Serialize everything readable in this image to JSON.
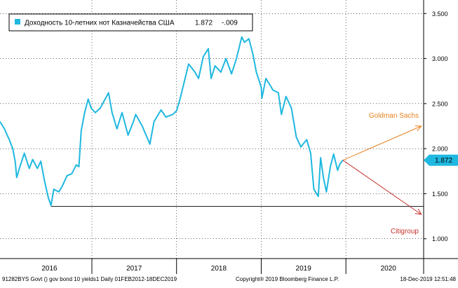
{
  "chart_data": {
    "type": "line",
    "title": "",
    "xlabel": "",
    "ylabel": "",
    "legend": {
      "label": "Доходность 10-летних нот Казначейства США",
      "last": "1.872",
      "change": "-.009",
      "placement": "top-left"
    },
    "x_range": [
      "2015-12-01",
      "2020-11-30"
    ],
    "ylim": [
      0.78,
      3.65
    ],
    "y_ticks": [
      "1.000",
      "1.500",
      "2.000",
      "2.500",
      "3.000",
      "3.500"
    ],
    "x_ticks": [
      {
        "label": "2016",
        "date": "2016-07-01"
      },
      {
        "label": "2017",
        "date": "2017-07-01"
      },
      {
        "label": "2018",
        "date": "2018-07-01"
      },
      {
        "label": "2019",
        "date": "2019-07-01"
      },
      {
        "label": "2020",
        "date": "2020-07-01"
      }
    ],
    "year_dividers": [
      "2016-12-31",
      "2017-12-31",
      "2018-12-31",
      "2019-12-31"
    ],
    "last_value_label": "1.872",
    "last_value": 1.872,
    "grid": true,
    "series": [
      {
        "name": "Доходность 10-летних нот Казначейства США",
        "color": "#1fb8e0",
        "points": [
          [
            "2015-12-01",
            2.3
          ],
          [
            "2015-12-20",
            2.22
          ],
          [
            "2016-01-10",
            2.1
          ],
          [
            "2016-01-25",
            2.0
          ],
          [
            "2016-02-05",
            1.85
          ],
          [
            "2016-02-11",
            1.68
          ],
          [
            "2016-02-25",
            1.8
          ],
          [
            "2016-03-15",
            1.95
          ],
          [
            "2016-04-05",
            1.78
          ],
          [
            "2016-04-20",
            1.88
          ],
          [
            "2016-05-10",
            1.78
          ],
          [
            "2016-05-25",
            1.86
          ],
          [
            "2016-06-10",
            1.64
          ],
          [
            "2016-06-27",
            1.45
          ],
          [
            "2016-07-08",
            1.37
          ],
          [
            "2016-07-20",
            1.55
          ],
          [
            "2016-08-10",
            1.52
          ],
          [
            "2016-08-25",
            1.58
          ],
          [
            "2016-09-15",
            1.7
          ],
          [
            "2016-10-05",
            1.72
          ],
          [
            "2016-10-25",
            1.82
          ],
          [
            "2016-11-05",
            1.8
          ],
          [
            "2016-11-15",
            2.2
          ],
          [
            "2016-11-30",
            2.4
          ],
          [
            "2016-12-15",
            2.55
          ],
          [
            "2016-12-28",
            2.45
          ],
          [
            "2017-01-15",
            2.4
          ],
          [
            "2017-02-05",
            2.45
          ],
          [
            "2017-03-13",
            2.62
          ],
          [
            "2017-03-28",
            2.4
          ],
          [
            "2017-04-18",
            2.22
          ],
          [
            "2017-05-10",
            2.4
          ],
          [
            "2017-06-05",
            2.15
          ],
          [
            "2017-06-28",
            2.3
          ],
          [
            "2017-07-08",
            2.38
          ],
          [
            "2017-08-05",
            2.25
          ],
          [
            "2017-09-07",
            2.05
          ],
          [
            "2017-09-25",
            2.3
          ],
          [
            "2017-10-25",
            2.43
          ],
          [
            "2017-11-15",
            2.35
          ],
          [
            "2017-12-15",
            2.38
          ],
          [
            "2017-12-31",
            2.42
          ],
          [
            "2018-01-15",
            2.55
          ],
          [
            "2018-01-31",
            2.72
          ],
          [
            "2018-02-21",
            2.94
          ],
          [
            "2018-03-20",
            2.85
          ],
          [
            "2018-04-05",
            2.78
          ],
          [
            "2018-04-25",
            3.02
          ],
          [
            "2018-05-17",
            3.11
          ],
          [
            "2018-05-29",
            2.78
          ],
          [
            "2018-06-15",
            2.92
          ],
          [
            "2018-07-10",
            2.85
          ],
          [
            "2018-08-01",
            3.0
          ],
          [
            "2018-08-25",
            2.83
          ],
          [
            "2018-09-15",
            3.0
          ],
          [
            "2018-10-08",
            3.24
          ],
          [
            "2018-10-20",
            3.18
          ],
          [
            "2018-11-08",
            3.22
          ],
          [
            "2018-11-25",
            3.05
          ],
          [
            "2018-12-10",
            2.85
          ],
          [
            "2018-12-31",
            2.68
          ],
          [
            "2019-01-03",
            2.56
          ],
          [
            "2019-01-20",
            2.78
          ],
          [
            "2019-02-20",
            2.65
          ],
          [
            "2019-03-15",
            2.62
          ],
          [
            "2019-03-28",
            2.38
          ],
          [
            "2019-04-17",
            2.58
          ],
          [
            "2019-05-10",
            2.45
          ],
          [
            "2019-05-31",
            2.13
          ],
          [
            "2019-06-20",
            2.02
          ],
          [
            "2019-07-15",
            2.1
          ],
          [
            "2019-08-01",
            1.95
          ],
          [
            "2019-08-15",
            1.55
          ],
          [
            "2019-09-03",
            1.47
          ],
          [
            "2019-09-13",
            1.9
          ],
          [
            "2019-09-25",
            1.68
          ],
          [
            "2019-10-08",
            1.52
          ],
          [
            "2019-10-25",
            1.8
          ],
          [
            "2019-11-08",
            1.94
          ],
          [
            "2019-11-25",
            1.76
          ],
          [
            "2019-12-05",
            1.83
          ],
          [
            "2019-12-18",
            1.872
          ]
        ]
      }
    ],
    "support_line": {
      "from": "2016-07-08",
      "to": "2020-11-30",
      "y": 1.36
    },
    "annotations": [
      {
        "label": "Goldman Sachs",
        "color": "#e8801e",
        "from": [
          "2019-12-18",
          1.872
        ],
        "to": [
          "2020-11-20",
          2.25
        ]
      },
      {
        "label": "Citigroup",
        "color": "#c4302b",
        "from": [
          "2019-12-18",
          1.872
        ],
        "to": [
          "2020-11-20",
          1.27
        ]
      }
    ]
  },
  "footer": {
    "left": "91282BYS Govt () gov bond 10 yields1  Daily 01FEB2012-18DEC2019",
    "center": "Copyright® 2019 Bloomberg Finance L.P.",
    "right": "18-Dec-2019 12:51:48"
  }
}
